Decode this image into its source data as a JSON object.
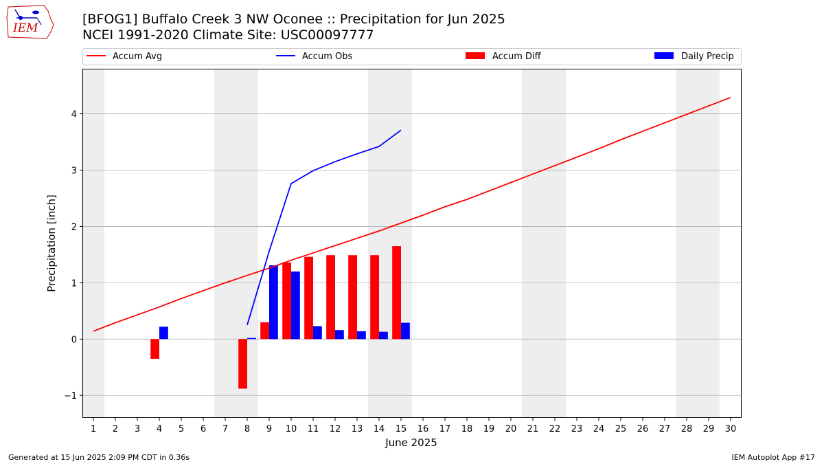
{
  "header": {
    "title_line1": "[BFOG1] Buffalo Creek 3 NW Oconee :: Precipitation for Jun 2025",
    "title_line2": "NCEI 1991-2020 Climate Site: USC00097777"
  },
  "logo": {
    "text": "IEM"
  },
  "footer": {
    "left": "Generated at 15 Jun 2025 2:09 PM CDT in 0.36s",
    "right": "IEM Autoplot App #17"
  },
  "colors": {
    "accum_avg": "#ff0000",
    "accum_obs": "#0000ff",
    "accum_diff": "#ff0000",
    "daily_precip": "#0000ff",
    "weekend_band": "#eeeeee",
    "grid": "#b0b0b0"
  },
  "chart_data": {
    "type": "bar",
    "xlabel": "June 2025",
    "ylabel": "Precipitation [inch]",
    "xlim": [
      0.5,
      30.5
    ],
    "ylim": [
      -1.4,
      4.8
    ],
    "yticks": [
      -1,
      0,
      1,
      2,
      3,
      4
    ],
    "yticklabels": [
      "−1",
      "0",
      "1",
      "2",
      "3",
      "4"
    ],
    "days": [
      1,
      2,
      3,
      4,
      5,
      6,
      7,
      8,
      9,
      10,
      11,
      12,
      13,
      14,
      15,
      16,
      17,
      18,
      19,
      20,
      21,
      22,
      23,
      24,
      25,
      26,
      27,
      28,
      29,
      30
    ],
    "weekend_bands": [
      [
        0.5,
        1.5
      ],
      [
        6.5,
        8.5
      ],
      [
        13.5,
        15.5
      ],
      [
        20.5,
        22.5
      ],
      [
        27.5,
        29.5
      ]
    ],
    "grid": "horizontal",
    "legend": [
      "Accum Avg",
      "Accum Obs",
      "Accum Diff",
      "Daily Precip"
    ],
    "legend_location": "top",
    "series": [
      {
        "name": "Accum Avg",
        "kind": "line",
        "x": [
          1,
          2,
          3,
          4,
          5,
          6,
          7,
          8,
          9,
          10,
          11,
          12,
          13,
          14,
          15,
          16,
          17,
          18,
          19,
          20,
          21,
          22,
          23,
          24,
          25,
          26,
          27,
          28,
          29,
          30
        ],
        "values": [
          0.14,
          0.29,
          0.43,
          0.57,
          0.72,
          0.86,
          1.0,
          1.13,
          1.26,
          1.4,
          1.53,
          1.66,
          1.79,
          1.92,
          2.06,
          2.2,
          2.35,
          2.48,
          2.63,
          2.78,
          2.93,
          3.08,
          3.23,
          3.38,
          3.54,
          3.69,
          3.84,
          3.99,
          4.14,
          4.29
        ]
      },
      {
        "name": "Accum Obs",
        "kind": "line",
        "x": [
          8,
          9,
          10,
          11,
          12,
          13,
          14,
          15
        ],
        "values": [
          0.25,
          1.56,
          2.76,
          2.99,
          3.15,
          3.29,
          3.42,
          3.71
        ]
      },
      {
        "name": "Accum Diff",
        "kind": "bar",
        "x": [
          4,
          8,
          9,
          10,
          11,
          12,
          13,
          14,
          15
        ],
        "values": [
          -0.35,
          -0.88,
          0.3,
          1.36,
          1.46,
          1.49,
          1.49,
          1.49,
          1.65
        ]
      },
      {
        "name": "Daily Precip",
        "kind": "bar",
        "x": [
          4,
          8,
          9,
          10,
          11,
          12,
          13,
          14,
          15
        ],
        "values": [
          0.22,
          0.02,
          1.31,
          1.2,
          0.23,
          0.16,
          0.14,
          0.13,
          0.29
        ]
      }
    ]
  }
}
